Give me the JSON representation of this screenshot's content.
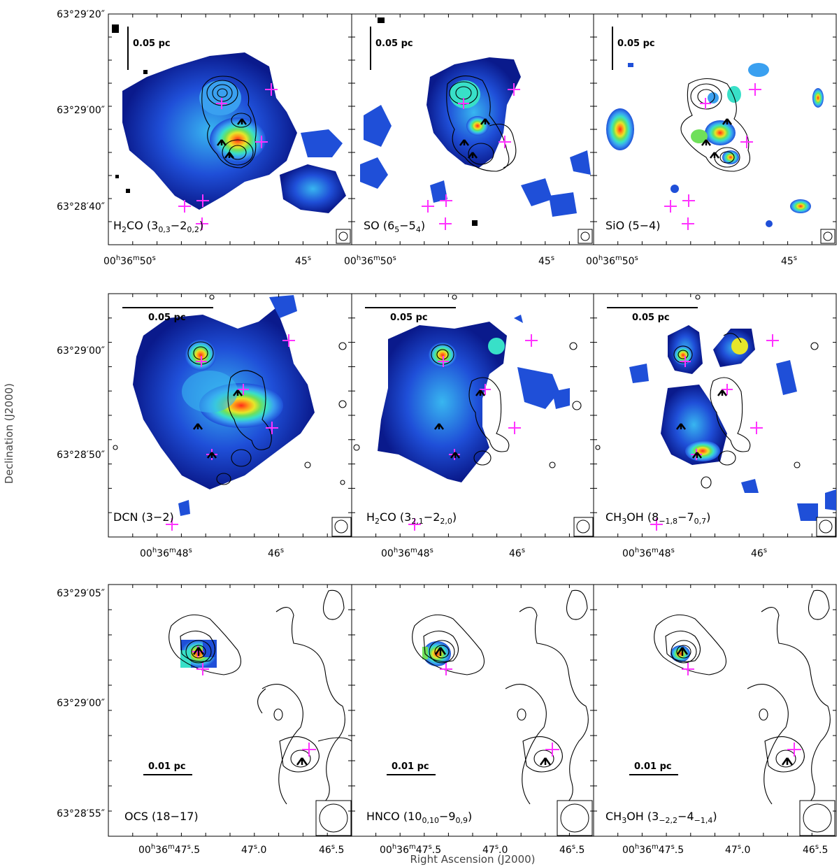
{
  "figure": {
    "ylabel": "Declination (J2000)",
    "xlabel": "Right Ascension (J2000)"
  },
  "rows": [
    {
      "id": "row1",
      "scale_bar": "0.05 pc",
      "y_ticks": [
        {
          "deg": "63",
          "amin": "29",
          "asec": "20"
        },
        {
          "deg": "63",
          "amin": "29",
          "asec": "00"
        },
        {
          "deg": "63",
          "amin": "28",
          "asec": "40"
        }
      ],
      "x_ticks": [
        {
          "kind": "full",
          "h": "00",
          "m": "36",
          "s": "50"
        },
        {
          "kind": "sec",
          "s": "45"
        }
      ],
      "panels": [
        {
          "id": "h2co-303",
          "label": {
            "main": "H",
            "sub1": "2",
            "mid": "CO (3",
            "sub2": "0,3",
            "dash": "−2",
            "sub3": "0,2",
            "end": ")"
          }
        },
        {
          "id": "so-65",
          "label": {
            "main": "SO (6",
            "sub1": "5",
            "mid": "−5",
            "sub2": "4",
            "end": ")"
          }
        },
        {
          "id": "sio-54",
          "label": {
            "main": "SiO (5−4)"
          }
        }
      ]
    },
    {
      "id": "row2",
      "scale_bar": "0.05 pc",
      "y_ticks": [
        {
          "deg": "63",
          "amin": "29",
          "asec": "00"
        },
        {
          "deg": "63",
          "amin": "28",
          "asec": "50"
        }
      ],
      "x_ticks": [
        {
          "kind": "full",
          "h": "00",
          "m": "36",
          "s": "48"
        },
        {
          "kind": "sec",
          "s": "46"
        }
      ],
      "panels": [
        {
          "id": "dcn-32",
          "label": {
            "main": "DCN (3−2)"
          }
        },
        {
          "id": "h2co-321",
          "label": {
            "main": "H",
            "sub1": "2",
            "mid": "CO (3",
            "sub2": "2,1",
            "dash": "−2",
            "sub3": "2,0",
            "end": ")"
          }
        },
        {
          "id": "ch3oh-8",
          "label": {
            "main": "CH",
            "sub1": "3",
            "mid": "OH (8",
            "sub2": "−1,8",
            "dash": "−7",
            "sub3": "0,7",
            "end": ")"
          }
        }
      ]
    },
    {
      "id": "row3",
      "scale_bar": "0.01 pc",
      "y_ticks": [
        {
          "deg": "63",
          "amin": "29",
          "asec": "05"
        },
        {
          "deg": "63",
          "amin": "29",
          "asec": "00"
        },
        {
          "deg": "63",
          "amin": "28",
          "asec": "55"
        }
      ],
      "x_ticks": [
        {
          "kind": "full",
          "h": "00",
          "m": "36",
          "s": "47",
          "frac": "5"
        },
        {
          "kind": "sec",
          "s": "47",
          "frac": "0"
        },
        {
          "kind": "sec",
          "s": "46",
          "frac": "5"
        }
      ],
      "panels": [
        {
          "id": "ocs-1817",
          "label": {
            "main": "OCS (18−17)"
          }
        },
        {
          "id": "hnco",
          "label": {
            "main": "HNCO (10",
            "sub1": "0,10",
            "mid": "−9",
            "sub2": "0,9",
            "end": ")"
          }
        },
        {
          "id": "ch3oh-3",
          "label": {
            "main": "CH",
            "sub1": "3",
            "mid": "OH (3",
            "sub2": "−2,2",
            "dash": "−4",
            "sub3": "−1,4",
            "end": ")"
          }
        }
      ]
    }
  ],
  "colors": {
    "cross": "#ff33ff",
    "contour": "#000000",
    "colormap": [
      "#0a1a8c",
      "#1f4fd8",
      "#3aa0f0",
      "#38e0c8",
      "#6fe05a",
      "#e6e62a",
      "#ff9a1a",
      "#ff2a1a",
      "#e0508a"
    ]
  }
}
